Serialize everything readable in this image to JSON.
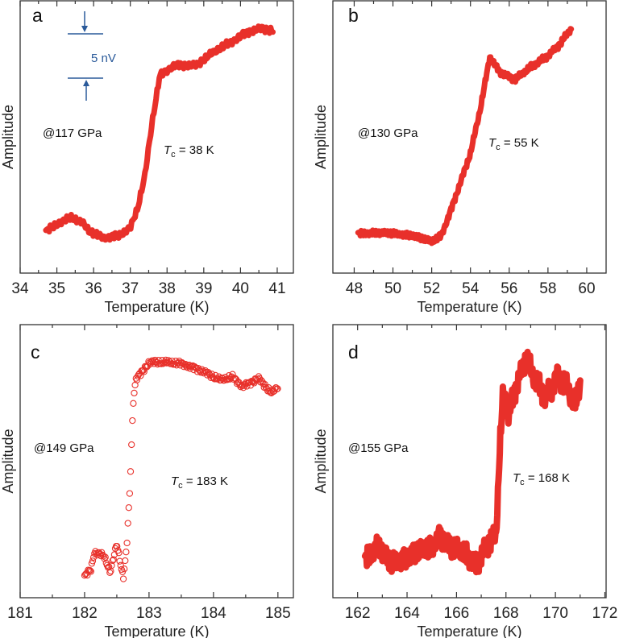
{
  "colors": {
    "data": "#e8302a",
    "scale_bar": "#2a5a9a",
    "axes": "#333333"
  },
  "scale_bar": {
    "label": "5 nV"
  },
  "chart_data": [
    {
      "panel": "a",
      "type": "line",
      "title": "a",
      "annotation": "@117 GPa",
      "tc": {
        "symbol": "T",
        "sub": "c",
        "value": " = 38 K"
      },
      "xlabel": "Temperature (K)",
      "ylabel": "Amplitude",
      "xticks": [
        34,
        35,
        36,
        37,
        38,
        39,
        40,
        41
      ],
      "xlim": [
        34,
        41.44
      ],
      "ylim": [
        0,
        100
      ],
      "x": [
        34.7,
        35.0,
        35.4,
        35.7,
        35.9,
        36.3,
        36.7,
        37.0,
        37.2,
        37.4,
        37.6,
        37.8,
        38.2,
        38.8,
        39.3,
        39.8,
        40.2,
        40.6,
        40.9
      ],
      "y": [
        15.3,
        18,
        20.4,
        18.3,
        15.3,
        13,
        14,
        16.5,
        24,
        36,
        56,
        72.5,
        76.4,
        76.4,
        81.4,
        85.3,
        88.7,
        90,
        88.7
      ]
    },
    {
      "panel": "b",
      "type": "line",
      "title": "b",
      "annotation": "@130 GPa",
      "tc": {
        "symbol": "T",
        "sub": "c",
        "value": " = 55 K"
      },
      "xlabel": "Temperature (K)",
      "ylabel": "Amplitude",
      "xticks": [
        48,
        50,
        52,
        54,
        56,
        58,
        60
      ],
      "xlim": [
        46.9,
        61.0
      ],
      "ylim": [
        0,
        100
      ],
      "x": [
        48.2,
        50,
        51,
        52,
        52.5,
        53,
        54,
        54.5,
        55,
        55.5,
        56.3,
        57,
        58,
        58.6,
        59.2
      ],
      "y": [
        14.5,
        14.7,
        13.8,
        11.5,
        13.8,
        23.3,
        44,
        60,
        79.4,
        74,
        71,
        75,
        80,
        84,
        89.7
      ]
    },
    {
      "panel": "c",
      "type": "scatter",
      "title": "c",
      "annotation": "@149 GPa",
      "tc": {
        "symbol": "T",
        "sub": "c",
        "value": " = 183 K"
      },
      "xlabel": "Temperature (K)",
      "ylabel": "Amplitude",
      "xticks": [
        181,
        182,
        183,
        184,
        185
      ],
      "xlim": [
        181,
        185.24
      ],
      "ylim": [
        0,
        100
      ],
      "x": [
        182.0,
        182.1,
        182.15,
        182.3,
        182.4,
        182.5,
        182.6,
        182.65,
        182.67,
        182.7,
        182.72,
        182.74,
        182.76,
        182.8,
        182.9,
        183.0,
        183.3,
        183.5,
        183.8,
        184.1,
        184.3,
        184.45,
        184.7,
        184.9,
        185.0
      ],
      "y": [
        7.9,
        10.3,
        16.7,
        15.3,
        9.4,
        19.7,
        7.4,
        17.2,
        26,
        38,
        50.7,
        63.5,
        73.9,
        80.3,
        82.8,
        86.2,
        86.2,
        85.7,
        83.3,
        79.8,
        80.8,
        77.3,
        80.3,
        74.9,
        77.3
      ]
    },
    {
      "panel": "d",
      "type": "line",
      "title": "d",
      "annotation": "@155 GPa",
      "tc": {
        "symbol": "T",
        "sub": "c",
        "value": " = 168 K"
      },
      "xlabel": "Temperature (K)",
      "ylabel": "Amplitude",
      "xticks": [
        162,
        164,
        166,
        168,
        170,
        172
      ],
      "xlim": [
        161.0,
        172.05
      ],
      "ylim": [
        0,
        100
      ],
      "x": [
        162.3,
        162.8,
        163.3,
        164,
        164.5,
        165,
        165.3,
        165.8,
        166.3,
        166.8,
        167.2,
        167.6,
        167.75,
        167.9,
        168.1,
        168.4,
        168.8,
        169.2,
        169.6,
        170.1,
        170.5,
        170.8,
        171.0
      ],
      "y": [
        13.9,
        18.4,
        13.2,
        14.7,
        16.9,
        18.4,
        22.9,
        18.4,
        16.2,
        12.4,
        19.2,
        22.2,
        55,
        76,
        67,
        77.5,
        88,
        79,
        73,
        82,
        76.6,
        70,
        79
      ]
    }
  ]
}
